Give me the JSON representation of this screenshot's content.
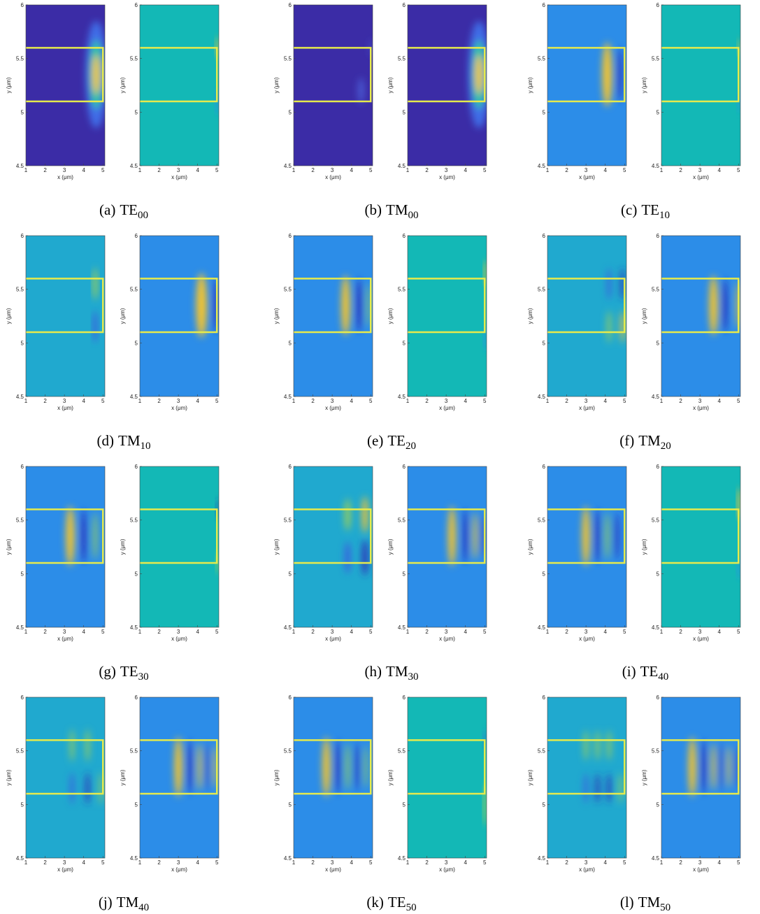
{
  "axes": {
    "xlabel": "x (μm)",
    "ylabel": "y (μm)",
    "xlim": [
      1,
      5.1
    ],
    "ylim": [
      4.5,
      6
    ],
    "xticks": [
      1,
      2,
      3,
      4,
      5
    ],
    "yticks": [
      4.5,
      5,
      5.5,
      6
    ]
  },
  "subfigures": [
    {
      "label": "(a)",
      "mode": "TE",
      "subscript": "00"
    },
    {
      "label": "(b)",
      "mode": "TM",
      "subscript": "00"
    },
    {
      "label": "(c)",
      "mode": "TE",
      "subscript": "10"
    },
    {
      "label": "(d)",
      "mode": "TM",
      "subscript": "10"
    },
    {
      "label": "(e)",
      "mode": "TE",
      "subscript": "20"
    },
    {
      "label": "(f)",
      "mode": "TM",
      "subscript": "20"
    },
    {
      "label": "(g)",
      "mode": "TE",
      "subscript": "30"
    },
    {
      "label": "(h)",
      "mode": "TM",
      "subscript": "30"
    },
    {
      "label": "(i)",
      "mode": "TE",
      "subscript": "40"
    },
    {
      "label": "(j)",
      "mode": "TM",
      "subscript": "40"
    },
    {
      "label": "(k)",
      "mode": "TE",
      "subscript": "50"
    },
    {
      "label": "(l)",
      "mode": "TM",
      "subscript": "50"
    }
  ]
}
